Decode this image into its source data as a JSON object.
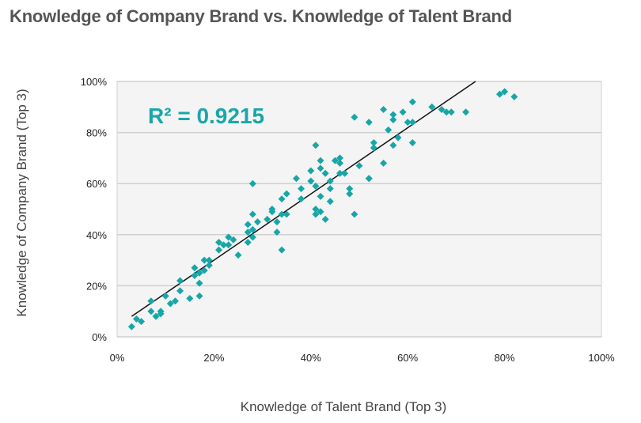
{
  "chart_data": {
    "type": "scatter",
    "title": "Knowledge of Company Brand vs. Knowledge of Talent Brand",
    "xlabel": "Knowledge of Talent Brand (Top 3)",
    "ylabel": "Knowledge of Company Brand (Top 3)",
    "xlim": [
      0,
      100
    ],
    "ylim": [
      0,
      100
    ],
    "xticks": [
      "0%",
      "20%",
      "40%",
      "60%",
      "80%",
      "100%"
    ],
    "yticks": [
      "0%",
      "20%",
      "40%",
      "60%",
      "80%",
      "100%"
    ],
    "grid": true,
    "annotation": "R² = 0.9215",
    "marker_color": "#17a6a8",
    "trendline": {
      "x": [
        3,
        74
      ],
      "y": [
        8,
        100
      ]
    },
    "points": [
      [
        3,
        4
      ],
      [
        4,
        7
      ],
      [
        5,
        6
      ],
      [
        7,
        14
      ],
      [
        7,
        10
      ],
      [
        8,
        8
      ],
      [
        9,
        10
      ],
      [
        9,
        9
      ],
      [
        10,
        16
      ],
      [
        11,
        13
      ],
      [
        12,
        14
      ],
      [
        13,
        18
      ],
      [
        13,
        22
      ],
      [
        15,
        15
      ],
      [
        16,
        24
      ],
      [
        16,
        27
      ],
      [
        17,
        16
      ],
      [
        17,
        21
      ],
      [
        17,
        25
      ],
      [
        18,
        26
      ],
      [
        18,
        30
      ],
      [
        19,
        28
      ],
      [
        19,
        30
      ],
      [
        21,
        34
      ],
      [
        21,
        37
      ],
      [
        22,
        36
      ],
      [
        23,
        36
      ],
      [
        23,
        39
      ],
      [
        24,
        38
      ],
      [
        25,
        32
      ],
      [
        27,
        41
      ],
      [
        27,
        44
      ],
      [
        28,
        48
      ],
      [
        27,
        37
      ],
      [
        28,
        39
      ],
      [
        28,
        60
      ],
      [
        28,
        42
      ],
      [
        29,
        45
      ],
      [
        31,
        46
      ],
      [
        32,
        49
      ],
      [
        32,
        50
      ],
      [
        33,
        45
      ],
      [
        33,
        41
      ],
      [
        34,
        48
      ],
      [
        35,
        56
      ],
      [
        34,
        54
      ],
      [
        34,
        34
      ],
      [
        35,
        48
      ],
      [
        37,
        62
      ],
      [
        38,
        58
      ],
      [
        38,
        54
      ],
      [
        40,
        65
      ],
      [
        40,
        61
      ],
      [
        41,
        75
      ],
      [
        41,
        50
      ],
      [
        41,
        48
      ],
      [
        41,
        59
      ],
      [
        42,
        55
      ],
      [
        42,
        69
      ],
      [
        42,
        66
      ],
      [
        42,
        49
      ],
      [
        43,
        64
      ],
      [
        43,
        46
      ],
      [
        44,
        61
      ],
      [
        44,
        53
      ],
      [
        44,
        58
      ],
      [
        45,
        69
      ],
      [
        46,
        70
      ],
      [
        46,
        68
      ],
      [
        46,
        64
      ],
      [
        47,
        64
      ],
      [
        48,
        58
      ],
      [
        48,
        56
      ],
      [
        49,
        48
      ],
      [
        49,
        86
      ],
      [
        50,
        67
      ],
      [
        52,
        62
      ],
      [
        52,
        84
      ],
      [
        52,
        62
      ],
      [
        53,
        74
      ],
      [
        53,
        76
      ],
      [
        55,
        68
      ],
      [
        55,
        89
      ],
      [
        56,
        81
      ],
      [
        57,
        85
      ],
      [
        57,
        87
      ],
      [
        57,
        75
      ],
      [
        58,
        78
      ],
      [
        59,
        88
      ],
      [
        60,
        84
      ],
      [
        61,
        92
      ],
      [
        61,
        84
      ],
      [
        61,
        76
      ],
      [
        65,
        90
      ],
      [
        67,
        89
      ],
      [
        68,
        88
      ],
      [
        69,
        88
      ],
      [
        72,
        88
      ],
      [
        79,
        95
      ],
      [
        80,
        96
      ],
      [
        82,
        94
      ]
    ]
  }
}
